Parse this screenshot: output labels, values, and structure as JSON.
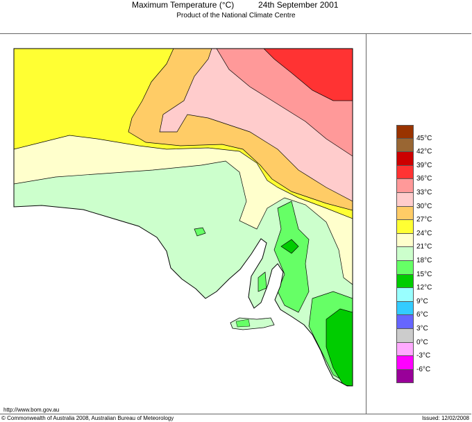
{
  "header": {
    "title": "Maximum Temperature (°C)",
    "date": "24th September 2001",
    "subtitle": "Product of the National Climate Centre"
  },
  "legend": [
    {
      "label": "",
      "color": "#993300"
    },
    {
      "label": "45°C",
      "color": "#996633"
    },
    {
      "label": "42°C",
      "color": "#cc0000"
    },
    {
      "label": "39°C",
      "color": "#ff3333"
    },
    {
      "label": "36°C",
      "color": "#ff9999"
    },
    {
      "label": "33°C",
      "color": "#ffcccc"
    },
    {
      "label": "30°C",
      "color": "#ffcc66"
    },
    {
      "label": "27°C",
      "color": "#ffff33"
    },
    {
      "label": "24°C",
      "color": "#ffffcc"
    },
    {
      "label": "21°C",
      "color": "#ccffcc"
    },
    {
      "label": "18°C",
      "color": "#66ff66"
    },
    {
      "label": "15°C",
      "color": "#00cc00"
    },
    {
      "label": "12°C",
      "color": "#99ffff"
    },
    {
      "label": "9°C",
      "color": "#33ccff"
    },
    {
      "label": "6°C",
      "color": "#6666ff"
    },
    {
      "label": "3°C",
      "color": "#cccccc"
    },
    {
      "label": "0°C",
      "color": "#ffaaff"
    },
    {
      "label": "-3°C",
      "color": "#ff00ff"
    },
    {
      "label": "-6°C",
      "color": "#990099"
    }
  ],
  "footer": {
    "url": "http://www.bom.gov.au",
    "copyright": "© Commonwealth of Australia 2008, Australian Bureau of Meteorology",
    "issued": "Issued: 12/02/2008"
  }
}
